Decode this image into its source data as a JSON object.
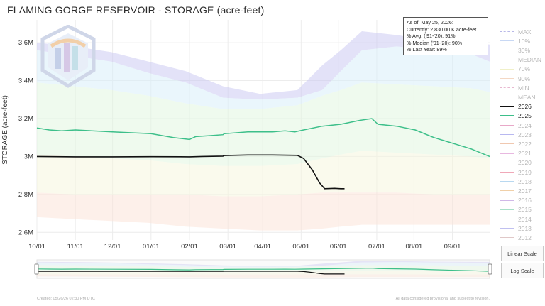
{
  "title": "FLAMING GORGE RESERVOIR - STORAGE (acre-feet)",
  "info": {
    "as_of": "As of: May 25, 2026:",
    "currently": "Currently: 2,830.00 K acre-feet",
    "avg": "% Avg. ('91-'20): 91%",
    "median": "% Median ('91-'20): 90%",
    "last_year": "% Last Year: 89%"
  },
  "buttons": {
    "linear": "Linear Scale",
    "log": "Log Scale"
  },
  "footer": {
    "created": "Created: 05/26/26 02:30 PM UTC",
    "disclaimer": "All data considered provisional and subject to revision."
  },
  "legend": [
    {
      "label": "MAX",
      "color": "#b8b8e8",
      "dash": "4,2",
      "faded": true
    },
    {
      "label": "10%",
      "color": "#c8d8f4",
      "dash": "",
      "faded": true
    },
    {
      "label": "30%",
      "color": "#c8ecd8",
      "dash": "",
      "faded": true
    },
    {
      "label": "MEDIAN",
      "color": "#e8e8c0",
      "dash": "",
      "faded": true
    },
    {
      "label": "70%",
      "color": "#f0f0c8",
      "dash": "",
      "faded": true
    },
    {
      "label": "90%",
      "color": "#f4d8c4",
      "dash": "",
      "faded": true
    },
    {
      "label": "MIN",
      "color": "#e8b8d0",
      "dash": "4,2",
      "faded": true
    },
    {
      "label": "MEAN",
      "color": "#e0d0c8",
      "dash": "4,2",
      "faded": true
    },
    {
      "label": "2026",
      "color": "#111111",
      "dash": "",
      "faded": false
    },
    {
      "label": "2025",
      "color": "#3dbf8a",
      "dash": "",
      "faded": false
    },
    {
      "label": "2024",
      "color": "#e8a8c8",
      "dash": "",
      "faded": true
    },
    {
      "label": "2023",
      "color": "#b8b8f0",
      "dash": "",
      "faded": true
    },
    {
      "label": "2022",
      "color": "#f0c8b0",
      "dash": "",
      "faded": true
    },
    {
      "label": "2021",
      "color": "#e8b8e0",
      "dash": "",
      "faded": true
    },
    {
      "label": "2020",
      "color": "#c8e8b8",
      "dash": "",
      "faded": true
    },
    {
      "label": "2019",
      "color": "#f0a8b8",
      "dash": "",
      "faded": true
    },
    {
      "label": "2018",
      "color": "#b8d8f0",
      "dash": "",
      "faded": true
    },
    {
      "label": "2017",
      "color": "#f0d0a8",
      "dash": "",
      "faded": true
    },
    {
      "label": "2016",
      "color": "#d0b8e8",
      "dash": "",
      "faded": true
    },
    {
      "label": "2015",
      "color": "#a8e0c8",
      "dash": "",
      "faded": true
    },
    {
      "label": "2014",
      "color": "#f0b8a8",
      "dash": "",
      "faded": true
    },
    {
      "label": "2013",
      "color": "#c0c0f0",
      "dash": "",
      "faded": true
    },
    {
      "label": "2012",
      "color": "#e0c8c8",
      "dash": "",
      "faded": true
    }
  ],
  "chart_data": {
    "type": "line",
    "ylabel": "STORAGE (acre-feet)",
    "xlabel": "",
    "x_tick_labels": [
      "10/01",
      "11/01",
      "12/01",
      "01/01",
      "02/01",
      "03/01",
      "04/01",
      "05/01",
      "06/01",
      "07/01",
      "08/01",
      "09/01"
    ],
    "y_ticks": [
      2600000,
      2800000,
      3000000,
      3200000,
      3400000,
      3600000
    ],
    "y_tick_labels": [
      "2.6M",
      "2.8M",
      "3M",
      "3.2M",
      "3.4M",
      "3.6M"
    ],
    "ylim": [
      2560000,
      3720000
    ],
    "x_range_days": [
      0,
      365
    ],
    "grid": true,
    "legend_position": "right",
    "bands": [
      {
        "name": "MAX-10%",
        "color": "#cccaf2",
        "upper": [
          [
            0,
            3600000
          ],
          [
            30,
            3580000
          ],
          [
            60,
            3550000
          ],
          [
            90,
            3500000
          ],
          [
            120,
            3450000
          ],
          [
            150,
            3370000
          ],
          [
            180,
            3330000
          ],
          [
            210,
            3350000
          ],
          [
            230,
            3480000
          ],
          [
            245,
            3560000
          ],
          [
            262,
            3660000
          ],
          [
            290,
            3640000
          ],
          [
            320,
            3610000
          ],
          [
            350,
            3600000
          ],
          [
            365,
            3590000
          ]
        ],
        "lower": [
          [
            0,
            3560000
          ],
          [
            30,
            3530000
          ],
          [
            60,
            3500000
          ],
          [
            90,
            3440000
          ],
          [
            120,
            3390000
          ],
          [
            150,
            3310000
          ],
          [
            180,
            3300000
          ],
          [
            210,
            3310000
          ],
          [
            230,
            3350000
          ],
          [
            245,
            3450000
          ],
          [
            262,
            3560000
          ],
          [
            290,
            3580000
          ],
          [
            320,
            3560000
          ],
          [
            350,
            3540000
          ],
          [
            365,
            3500000
          ]
        ]
      },
      {
        "name": "10%-30%",
        "color": "#d9eef9",
        "upper": [
          [
            0,
            3560000
          ],
          [
            30,
            3530000
          ],
          [
            60,
            3500000
          ],
          [
            90,
            3440000
          ],
          [
            120,
            3390000
          ],
          [
            150,
            3310000
          ],
          [
            180,
            3300000
          ],
          [
            210,
            3310000
          ],
          [
            230,
            3350000
          ],
          [
            245,
            3450000
          ],
          [
            262,
            3560000
          ],
          [
            290,
            3580000
          ],
          [
            320,
            3560000
          ],
          [
            350,
            3540000
          ],
          [
            365,
            3500000
          ]
        ],
        "lower": [
          [
            0,
            3390000
          ],
          [
            30,
            3370000
          ],
          [
            60,
            3350000
          ],
          [
            90,
            3320000
          ],
          [
            120,
            3280000
          ],
          [
            150,
            3250000
          ],
          [
            180,
            3250000
          ],
          [
            210,
            3270000
          ],
          [
            230,
            3320000
          ],
          [
            245,
            3350000
          ],
          [
            262,
            3390000
          ],
          [
            290,
            3380000
          ],
          [
            320,
            3370000
          ],
          [
            350,
            3360000
          ],
          [
            365,
            3340000
          ]
        ]
      },
      {
        "name": "30%-70%",
        "color": "#e2f6e0",
        "upper": [
          [
            0,
            3390000
          ],
          [
            30,
            3370000
          ],
          [
            60,
            3350000
          ],
          [
            90,
            3320000
          ],
          [
            120,
            3280000
          ],
          [
            150,
            3250000
          ],
          [
            180,
            3250000
          ],
          [
            210,
            3270000
          ],
          [
            230,
            3320000
          ],
          [
            245,
            3350000
          ],
          [
            262,
            3390000
          ],
          [
            290,
            3380000
          ],
          [
            320,
            3370000
          ],
          [
            350,
            3360000
          ],
          [
            365,
            3340000
          ]
        ],
        "lower": [
          [
            0,
            3010000
          ],
          [
            30,
            3000000
          ],
          [
            60,
            2990000
          ],
          [
            90,
            2980000
          ],
          [
            120,
            2960000
          ],
          [
            150,
            2950000
          ],
          [
            180,
            2950000
          ],
          [
            210,
            2960000
          ],
          [
            230,
            2990000
          ],
          [
            245,
            3010000
          ],
          [
            262,
            3030000
          ],
          [
            290,
            3020000
          ],
          [
            320,
            3010000
          ],
          [
            350,
            3000000
          ],
          [
            365,
            2990000
          ]
        ]
      },
      {
        "name": "70%-90%",
        "color": "#f6f6de",
        "upper": [
          [
            0,
            3010000
          ],
          [
            30,
            3000000
          ],
          [
            60,
            2990000
          ],
          [
            90,
            2980000
          ],
          [
            120,
            2960000
          ],
          [
            150,
            2950000
          ],
          [
            180,
            2950000
          ],
          [
            210,
            2960000
          ],
          [
            230,
            2990000
          ],
          [
            245,
            3010000
          ],
          [
            262,
            3030000
          ],
          [
            290,
            3020000
          ],
          [
            320,
            3010000
          ],
          [
            350,
            3000000
          ],
          [
            365,
            2990000
          ]
        ],
        "lower": [
          [
            0,
            2810000
          ],
          [
            30,
            2800000
          ],
          [
            60,
            2800000
          ],
          [
            90,
            2800000
          ],
          [
            120,
            2800000
          ],
          [
            150,
            2790000
          ],
          [
            180,
            2790000
          ],
          [
            210,
            2800000
          ],
          [
            230,
            2810000
          ],
          [
            245,
            2810000
          ],
          [
            262,
            2810000
          ],
          [
            290,
            2810000
          ],
          [
            320,
            2800000
          ],
          [
            350,
            2800000
          ],
          [
            365,
            2800000
          ]
        ]
      },
      {
        "name": "90%-MIN",
        "color": "#fbe4d8",
        "upper": [
          [
            0,
            2810000
          ],
          [
            30,
            2800000
          ],
          [
            60,
            2800000
          ],
          [
            90,
            2800000
          ],
          [
            120,
            2800000
          ],
          [
            150,
            2790000
          ],
          [
            180,
            2790000
          ],
          [
            210,
            2800000
          ],
          [
            230,
            2810000
          ],
          [
            245,
            2810000
          ],
          [
            262,
            2810000
          ],
          [
            290,
            2810000
          ],
          [
            320,
            2800000
          ],
          [
            350,
            2800000
          ],
          [
            365,
            2800000
          ]
        ],
        "lower": [
          [
            0,
            2680000
          ],
          [
            30,
            2670000
          ],
          [
            60,
            2660000
          ],
          [
            90,
            2650000
          ],
          [
            120,
            2630000
          ],
          [
            150,
            2620000
          ],
          [
            180,
            2610000
          ],
          [
            210,
            2610000
          ],
          [
            230,
            2620000
          ],
          [
            245,
            2630000
          ],
          [
            262,
            2640000
          ],
          [
            290,
            2640000
          ],
          [
            320,
            2640000
          ],
          [
            350,
            2640000
          ],
          [
            365,
            2640000
          ]
        ]
      }
    ],
    "series": [
      {
        "name": "2025",
        "color": "#3dbf8a",
        "points": [
          [
            0,
            3150000
          ],
          [
            10,
            3140000
          ],
          [
            20,
            3135000
          ],
          [
            31,
            3140000
          ],
          [
            61,
            3130000
          ],
          [
            92,
            3120000
          ],
          [
            110,
            3100000
          ],
          [
            123,
            3090000
          ],
          [
            128,
            3105000
          ],
          [
            140,
            3110000
          ],
          [
            150,
            3115000
          ],
          [
            151,
            3120000
          ],
          [
            170,
            3130000
          ],
          [
            190,
            3130000
          ],
          [
            200,
            3135000
          ],
          [
            208,
            3130000
          ],
          [
            215,
            3140000
          ],
          [
            230,
            3160000
          ],
          [
            245,
            3170000
          ],
          [
            260,
            3190000
          ],
          [
            270,
            3200000
          ],
          [
            275,
            3170000
          ],
          [
            290,
            3160000
          ],
          [
            305,
            3140000
          ],
          [
            320,
            3100000
          ],
          [
            335,
            3070000
          ],
          [
            350,
            3040000
          ],
          [
            365,
            3000000
          ]
        ]
      },
      {
        "name": "2026",
        "color": "#111111",
        "points": [
          [
            0,
            3000000
          ],
          [
            31,
            2998000
          ],
          [
            61,
            2998000
          ],
          [
            92,
            2999000
          ],
          [
            123,
            2998000
          ],
          [
            133,
            3000000
          ],
          [
            150,
            3002000
          ],
          [
            151,
            3005000
          ],
          [
            170,
            3008000
          ],
          [
            190,
            3008000
          ],
          [
            210,
            3006000
          ],
          [
            215,
            2990000
          ],
          [
            222,
            2930000
          ],
          [
            228,
            2860000
          ],
          [
            232,
            2830000
          ],
          [
            240,
            2832000
          ],
          [
            245,
            2830000
          ],
          [
            248,
            2830000
          ]
        ]
      }
    ]
  }
}
